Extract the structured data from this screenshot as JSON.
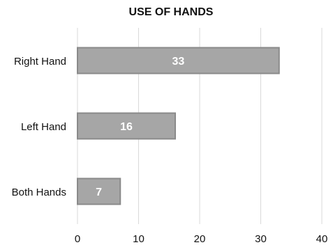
{
  "chart_data": {
    "type": "bar",
    "orientation": "horizontal",
    "title": "USE OF HANDS",
    "categories": [
      "Right Hand",
      "Left Hand",
      "Both Hands"
    ],
    "values": [
      33,
      16,
      7
    ],
    "data_labels": [
      "33",
      "16",
      "7"
    ],
    "xlim": [
      0,
      40
    ],
    "ticks": [
      0,
      10,
      20,
      30,
      40
    ],
    "tick_labels": [
      "0",
      "10",
      "20",
      "30",
      "40"
    ],
    "grid": true,
    "legend": "none",
    "colors": {
      "bar_fill": "#a6a6a6",
      "bar_stroke": "#8a8a8a",
      "grid": "#d9d9d9",
      "text": "#111111",
      "data_label": "#ffffff"
    }
  }
}
